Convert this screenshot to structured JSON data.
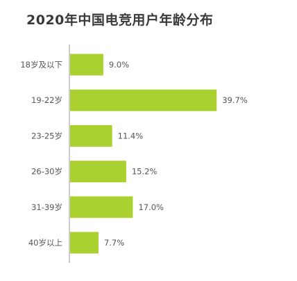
{
  "chart_data": {
    "type": "bar",
    "orientation": "horizontal",
    "title": "2020年中国电竞用户年龄分布",
    "categories": [
      "18岁及以下",
      "19-22岁",
      "23-25岁",
      "26-30岁",
      "31-39岁",
      "40岁以上"
    ],
    "values": [
      9.0,
      39.7,
      11.4,
      15.2,
      17.0,
      7.7
    ],
    "value_labels": [
      "9.0%",
      "39.7%",
      "11.4%",
      "15.2%",
      "17.0%",
      "7.7%"
    ],
    "xlim": [
      0,
      40
    ],
    "xlabel": "",
    "ylabel": "",
    "grid": false,
    "bar_color": "#aad12f",
    "axis_color": "#999999"
  }
}
